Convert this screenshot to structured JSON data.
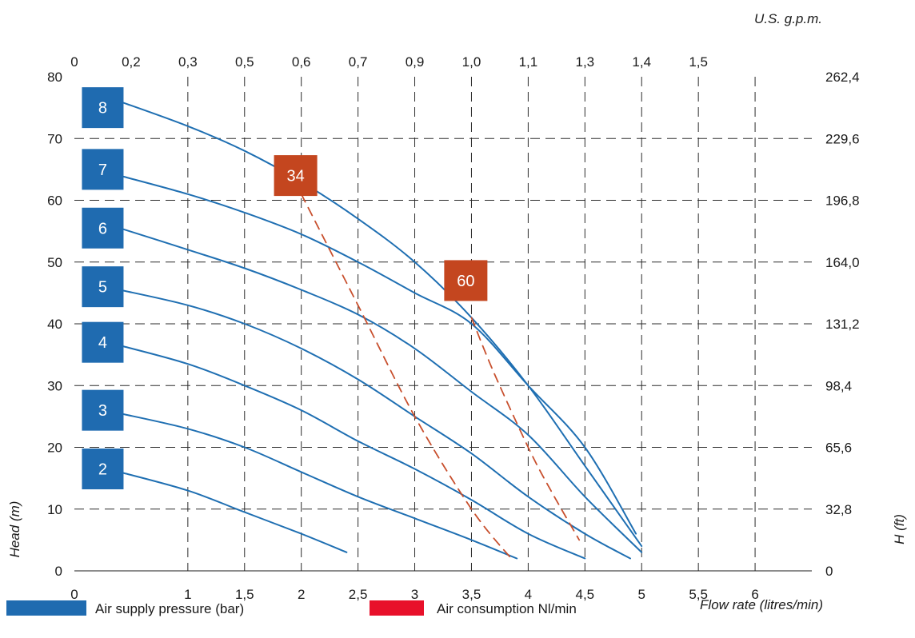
{
  "chart_data": {
    "type": "line",
    "x_bottom_label": "Flow rate (litres/min)",
    "x_bottom_ticks": [
      "0",
      "1",
      "1,5",
      "2",
      "2,5",
      "3",
      "3,5",
      "4",
      "4,5",
      "5",
      "5,5",
      "6"
    ],
    "x_bottom_tick_values": [
      0,
      1,
      1.5,
      2,
      2.5,
      3,
      3.5,
      4,
      4.5,
      5,
      5.5,
      6
    ],
    "x_top_label": "U.S. g.p.m.",
    "x_top_ticks": [
      "0",
      "0,2",
      "0,3",
      "0,5",
      "0,6",
      "0,7",
      "0,9",
      "1,0",
      "1,1",
      "1,3",
      "1,4",
      "1,5"
    ],
    "x_top_tick_values": [
      0,
      0.5,
      1,
      1.5,
      2,
      2.5,
      3,
      3.5,
      4,
      4.5,
      5,
      5.5
    ],
    "y_left_label": "Head  (m)",
    "y_left_ticks": [
      "0",
      "10",
      "20",
      "30",
      "40",
      "50",
      "60",
      "70",
      "80"
    ],
    "y_right_label": "H (ft)",
    "y_right_ticks": [
      "0",
      "32,8",
      "65,6",
      "98,4",
      "131,2",
      "164,0",
      "196,8",
      "229,6",
      "262,4"
    ],
    "xlim": [
      0,
      6.5
    ],
    "ylim": [
      0,
      80
    ],
    "grid": true,
    "grid_style": "dashed",
    "pressure_color": "#1f6fb2",
    "pressure_label_bg": "#1f6bb0",
    "consumption_color": "#c8502e",
    "consumption_label_bg": "#c4461f",
    "series": [
      {
        "name": "8",
        "kind": "air-supply-pressure",
        "x": [
          0.4,
          1.0,
          1.5,
          2.0,
          2.5,
          3.0,
          3.5,
          4.0,
          4.5,
          5.0
        ],
        "y": [
          76,
          72,
          68,
          63,
          57,
          50,
          41,
          30,
          17,
          4
        ]
      },
      {
        "name": "7",
        "kind": "air-supply-pressure",
        "x": [
          0.4,
          1.0,
          1.5,
          2.0,
          2.5,
          3.0,
          3.5,
          4.0,
          4.5,
          4.95
        ],
        "y": [
          64,
          61,
          58,
          54.5,
          50,
          45,
          40,
          30,
          20,
          6
        ]
      },
      {
        "name": "6",
        "kind": "air-supply-pressure",
        "x": [
          0.4,
          1.0,
          1.5,
          2.0,
          2.5,
          3.0,
          3.5,
          4.0,
          4.5,
          5.0
        ],
        "y": [
          55.5,
          52,
          49,
          45.5,
          41.5,
          36,
          29,
          22,
          12,
          3
        ]
      },
      {
        "name": "5",
        "kind": "air-supply-pressure",
        "x": [
          0.4,
          1.0,
          1.5,
          2.0,
          2.5,
          3.0,
          3.5,
          4.0,
          4.5,
          4.9
        ],
        "y": [
          45.5,
          43,
          40,
          36,
          31,
          25,
          19,
          12,
          6,
          2
        ]
      },
      {
        "name": "4",
        "kind": "air-supply-pressure",
        "x": [
          0.4,
          1.0,
          1.5,
          2.0,
          2.5,
          3.0,
          3.5,
          4.0,
          4.5
        ],
        "y": [
          36.5,
          33.5,
          30,
          26,
          21,
          16.5,
          11.5,
          6,
          2
        ]
      },
      {
        "name": "3",
        "kind": "air-supply-pressure",
        "x": [
          0.4,
          1.0,
          1.5,
          2.0,
          2.5,
          3.0,
          3.5,
          3.9
        ],
        "y": [
          25.5,
          23,
          20,
          16,
          12,
          8.5,
          5,
          2
        ]
      },
      {
        "name": "2",
        "kind": "air-supply-pressure",
        "x": [
          0.4,
          1.0,
          1.5,
          2.0,
          2.4
        ],
        "y": [
          16,
          13,
          9.5,
          6,
          3
        ]
      },
      {
        "name": "34",
        "kind": "air-consumption",
        "x": [
          2.0,
          2.5,
          3.0,
          3.5,
          3.85
        ],
        "y": [
          61,
          43,
          25,
          10,
          2
        ]
      },
      {
        "name": "60",
        "kind": "air-consumption",
        "x": [
          3.5,
          3.7,
          4.0,
          4.2,
          4.45
        ],
        "y": [
          41,
          32,
          20,
          13,
          5
        ]
      }
    ],
    "box_labels": [
      {
        "text": "8",
        "kind": "pressure",
        "at_x": 0.25,
        "at_y": 75
      },
      {
        "text": "7",
        "kind": "pressure",
        "at_x": 0.25,
        "at_y": 65
      },
      {
        "text": "6",
        "kind": "pressure",
        "at_x": 0.25,
        "at_y": 55.5
      },
      {
        "text": "5",
        "kind": "pressure",
        "at_x": 0.25,
        "at_y": 46
      },
      {
        "text": "4",
        "kind": "pressure",
        "at_x": 0.25,
        "at_y": 37
      },
      {
        "text": "3",
        "kind": "pressure",
        "at_x": 0.25,
        "at_y": 26
      },
      {
        "text": "2",
        "kind": "pressure",
        "at_x": 0.25,
        "at_y": 16.5
      },
      {
        "text": "34",
        "kind": "consumption",
        "at_x": 1.95,
        "at_y": 64
      },
      {
        "text": "60",
        "kind": "consumption",
        "at_x": 3.45,
        "at_y": 47
      }
    ],
    "legend": [
      {
        "label": "Air supply pressure (bar)",
        "color": "#1f6bb0"
      },
      {
        "label": "Air consumption Nl/min",
        "color": "#e8102a"
      }
    ],
    "legend_position": "bottom"
  }
}
